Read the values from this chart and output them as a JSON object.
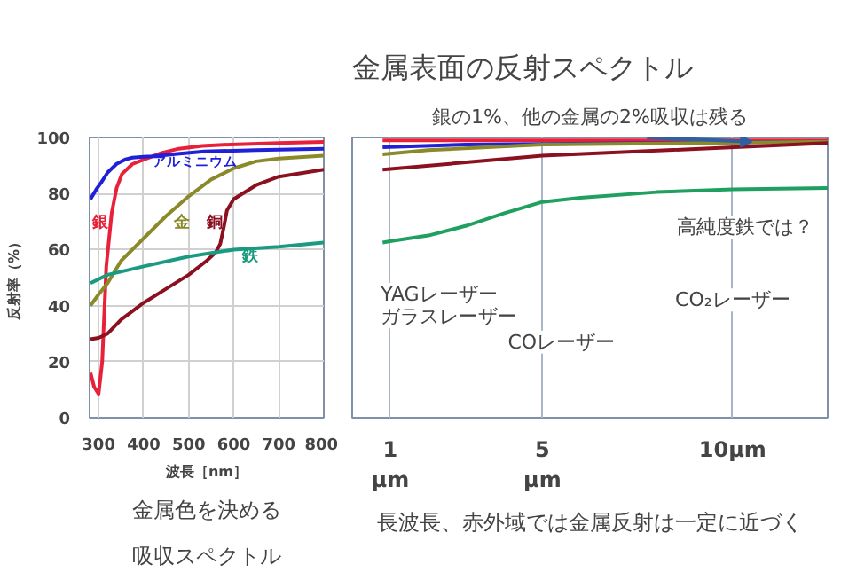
{
  "chart_data": [
    {
      "type": "line",
      "xlabel": "波長［nm］",
      "ylabel": "反射率（%）",
      "xlim": [
        280,
        800
      ],
      "xticks": [
        300,
        400,
        500,
        600,
        700,
        800
      ],
      "ylim": [
        0,
        100
      ],
      "yticks": [
        0,
        20,
        40,
        60,
        80,
        100
      ],
      "grid": true,
      "annotations": [
        "金属色を決める",
        "吸収スペクトル"
      ],
      "series": [
        {
          "name": "銀",
          "color": "#e8203a",
          "x": [
            282,
            290,
            300,
            308,
            317,
            329,
            340,
            352,
            375,
            398,
            440,
            478,
            530,
            593,
            700,
            800
          ],
          "values": [
            16,
            11,
            8.5,
            20,
            54,
            73,
            82,
            87,
            90.5,
            92,
            94.5,
            96,
            97,
            97.5,
            98,
            98.4
          ]
        },
        {
          "name": "アルミニウム",
          "color": "#2020d8",
          "x": [
            282,
            295,
            306,
            320,
            340,
            360,
            375,
            400,
            420,
            480,
            535,
            650,
            800
          ],
          "values": [
            78,
            81.5,
            84,
            87.5,
            90.6,
            92.2,
            92.8,
            93.1,
            93.3,
            94.2,
            95,
            95.5,
            96
          ]
        },
        {
          "name": "金",
          "color": "#8a8a2a",
          "x": [
            282,
            300,
            320,
            350,
            400,
            450,
            500,
            550,
            600,
            650,
            700,
            800
          ],
          "values": [
            40,
            44,
            48,
            56,
            64,
            72,
            79,
            85,
            89,
            91.5,
            92.5,
            93.5
          ]
        },
        {
          "name": "銅",
          "color": "#8b1020",
          "x": [
            282,
            300,
            320,
            350,
            400,
            450,
            500,
            540,
            560,
            570,
            578,
            585,
            600,
            650,
            700,
            800
          ],
          "values": [
            28,
            28.5,
            30,
            35,
            41,
            46,
            51,
            56,
            59,
            62,
            68,
            74,
            78,
            83,
            86,
            88.5
          ]
        },
        {
          "name": "鉄",
          "color": "#1a9a80",
          "x": [
            282,
            320,
            400,
            500,
            600,
            700,
            800
          ],
          "values": [
            48,
            51,
            54,
            57.5,
            60,
            61,
            62.5
          ]
        }
      ]
    },
    {
      "type": "line",
      "title": "金属表面の反射スペクトル",
      "xlim": [
        0,
        12.5
      ],
      "xticks": [
        {
          "value": 1,
          "label": "1\nμm"
        },
        {
          "value": 5,
          "label": "5\nμm"
        },
        {
          "value": 10,
          "label": "10μm"
        }
      ],
      "ylim": [
        0,
        100
      ],
      "grid": "x",
      "tick_labels": "x",
      "annotations": [
        {
          "text": "銀の1%、他の金属の2%吸収は残る",
          "x": 10.5,
          "y": 98.5
        },
        "YAGレーザー",
        "ガラスレーザー",
        "COレーザー",
        "CO₂レーザー",
        "高純度鉄では？",
        "長波長、赤外域では金属反射は一定に近づく"
      ],
      "series": [
        {
          "color": "#e8203a",
          "x": [
            0.8,
            12.5
          ],
          "values": [
            99,
            99
          ]
        },
        {
          "color": "#2020d8",
          "x": [
            0.8,
            3,
            12.5
          ],
          "values": [
            96.5,
            97.5,
            98.5
          ]
        },
        {
          "color": "#8a8a2a",
          "x": [
            0.8,
            2,
            5,
            12.5
          ],
          "values": [
            94,
            95.5,
            97.5,
            98.5
          ]
        },
        {
          "color": "#8b1020",
          "x": [
            0.8,
            5,
            12.5
          ],
          "values": [
            88.5,
            93.5,
            98
          ]
        },
        {
          "color": "#20a060",
          "x": [
            0.8,
            1,
            2,
            3,
            4,
            5,
            6,
            8,
            10,
            12.5
          ],
          "values": [
            62.5,
            63,
            65,
            68.5,
            73,
            77,
            78.5,
            80.5,
            81.5,
            82
          ]
        }
      ]
    }
  ]
}
